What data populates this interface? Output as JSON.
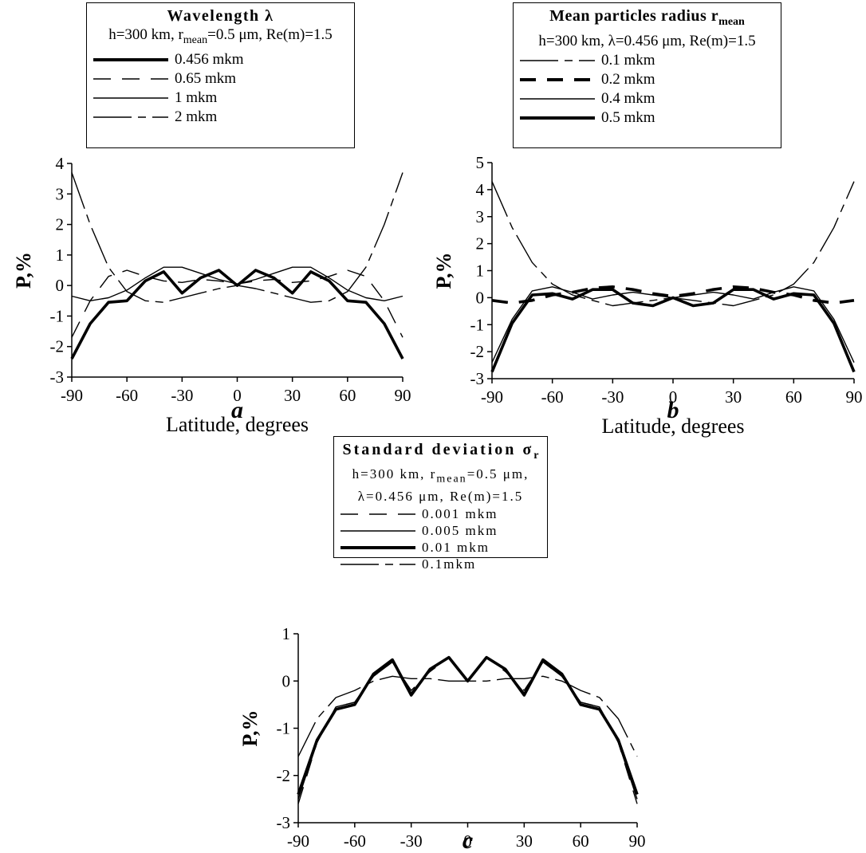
{
  "chart_data": [
    {
      "type": "line",
      "panel_label": "a",
      "legend": {
        "title": "Wavelength λ",
        "conditions": [
          "h=300 km, r",
          "mean",
          "=0.5 μm, Re(m)=1.5"
        ]
      },
      "xlabel": "Latitude, degrees",
      "ylabel": "P,%",
      "xlim": [
        -90,
        90
      ],
      "ylim": [
        -3,
        4
      ],
      "xticks": [
        -90,
        -60,
        -30,
        0,
        30,
        60,
        90
      ],
      "yticks": [
        -3,
        -2,
        -1,
        0,
        1,
        2,
        3,
        4
      ],
      "x": [
        -90,
        -80,
        -70,
        -60,
        -50,
        -40,
        -30,
        -20,
        -10,
        0,
        10,
        20,
        30,
        40,
        50,
        60,
        70,
        80,
        90
      ],
      "series": [
        {
          "name": "0.456 mkm",
          "style": "thick",
          "values": [
            -2.4,
            -1.25,
            -0.55,
            -0.5,
            0.15,
            0.45,
            -0.25,
            0.25,
            0.5,
            0.0,
            0.5,
            0.25,
            -0.25,
            0.45,
            0.15,
            -0.5,
            -0.55,
            -1.25,
            -2.4
          ]
        },
        {
          "name": "0.65 mkm",
          "style": "dashed",
          "values": [
            -1.7,
            -0.5,
            0.3,
            0.5,
            0.3,
            0.15,
            0.1,
            0.2,
            0.15,
            0.05,
            0.15,
            0.2,
            0.1,
            0.15,
            0.3,
            0.5,
            0.3,
            -0.5,
            -1.7
          ]
        },
        {
          "name": "1 mkm",
          "style": "thin",
          "values": [
            -0.35,
            -0.5,
            -0.4,
            -0.15,
            0.25,
            0.6,
            0.6,
            0.4,
            0.2,
            0.05,
            0.2,
            0.4,
            0.6,
            0.6,
            0.25,
            -0.15,
            -0.4,
            -0.5,
            -0.35
          ]
        },
        {
          "name": "2 mkm",
          "style": "dashdot",
          "values": [
            3.7,
            2.0,
            0.6,
            -0.2,
            -0.5,
            -0.55,
            -0.4,
            -0.25,
            -0.1,
            0.0,
            -0.1,
            -0.25,
            -0.4,
            -0.55,
            -0.5,
            -0.2,
            0.6,
            2.0,
            3.7
          ]
        }
      ]
    },
    {
      "type": "line",
      "panel_label": "b",
      "legend": {
        "title": "Mean particles radius r",
        "title_sub": "mean",
        "conditions": [
          "h=300 km, λ=0.456 μm, Re(m)=1.5"
        ]
      },
      "xlabel": "Latitude, degrees",
      "ylabel": "P,%",
      "xlim": [
        -90,
        90
      ],
      "ylim": [
        -3,
        5
      ],
      "xticks": [
        -90,
        -60,
        -30,
        0,
        30,
        60,
        90
      ],
      "yticks": [
        -3,
        -2,
        -1,
        0,
        1,
        2,
        3,
        4,
        5
      ],
      "x": [
        -90,
        -80,
        -70,
        -60,
        -50,
        -40,
        -30,
        -20,
        -10,
        0,
        10,
        20,
        30,
        40,
        50,
        60,
        70,
        80,
        90
      ],
      "series": [
        {
          "name": "0.1 mkm",
          "style": "dashdot",
          "values": [
            4.3,
            2.6,
            1.3,
            0.5,
            0.1,
            -0.1,
            -0.3,
            -0.2,
            -0.1,
            0.0,
            -0.1,
            -0.2,
            -0.3,
            -0.1,
            0.1,
            0.5,
            1.3,
            2.6,
            4.3
          ]
        },
        {
          "name": "0.2 mkm",
          "style": "thickdashed",
          "values": [
            -0.1,
            -0.2,
            -0.1,
            0.1,
            0.2,
            0.35,
            0.4,
            0.3,
            0.15,
            0.05,
            0.15,
            0.3,
            0.4,
            0.35,
            0.2,
            0.1,
            -0.1,
            -0.2,
            -0.1
          ]
        },
        {
          "name": "0.4 mkm",
          "style": "thin",
          "values": [
            -2.4,
            -0.8,
            0.25,
            0.4,
            0.2,
            -0.05,
            0.1,
            0.2,
            0.1,
            0.0,
            0.1,
            0.2,
            0.1,
            -0.05,
            0.2,
            0.4,
            0.25,
            -0.8,
            -2.4
          ]
        },
        {
          "name": "0.5 mkm",
          "style": "thick",
          "values": [
            -2.75,
            -0.95,
            0.1,
            0.15,
            -0.05,
            0.3,
            0.3,
            -0.2,
            -0.3,
            0.0,
            -0.3,
            -0.2,
            0.3,
            0.3,
            -0.05,
            0.15,
            0.1,
            -0.95,
            -2.75
          ]
        }
      ]
    },
    {
      "type": "line",
      "panel_label": "c",
      "legend": {
        "title": "Standard deviation σ",
        "title_sub": "r",
        "conditions": [
          "h=300 km, r",
          "mean",
          "=0.5 μm,",
          "λ=0.456 μm, Re(m)=1.5"
        ]
      },
      "xlabel": "Latitude, degrees",
      "ylabel": "P,%",
      "xlim": [
        -90,
        90
      ],
      "ylim": [
        -3,
        1
      ],
      "xticks": [
        -90,
        -60,
        -30,
        0,
        30,
        60,
        90
      ],
      "yticks": [
        -3,
        -2,
        -1,
        0,
        1
      ],
      "x": [
        -90,
        -80,
        -70,
        -60,
        -50,
        -40,
        -30,
        -20,
        -10,
        0,
        10,
        20,
        30,
        40,
        50,
        60,
        70,
        80,
        90
      ],
      "series": [
        {
          "name": "0.001 mkm",
          "style": "dashed",
          "values": [
            -2.6,
            -1.3,
            -0.55,
            -0.45,
            0.1,
            0.4,
            -0.2,
            0.2,
            0.5,
            0.0,
            0.5,
            0.2,
            -0.2,
            0.4,
            0.1,
            -0.45,
            -0.55,
            -1.3,
            -2.6
          ]
        },
        {
          "name": "0.005 mkm",
          "style": "thin",
          "values": [
            -2.5,
            -1.3,
            -0.55,
            -0.45,
            0.1,
            0.4,
            -0.25,
            0.25,
            0.5,
            0.0,
            0.5,
            0.25,
            -0.25,
            0.4,
            0.1,
            -0.45,
            -0.55,
            -1.3,
            -2.5
          ]
        },
        {
          "name": "0.01 mkm",
          "style": "thick",
          "values": [
            -2.4,
            -1.25,
            -0.6,
            -0.5,
            0.15,
            0.45,
            -0.3,
            0.25,
            0.5,
            0.0,
            0.5,
            0.25,
            -0.3,
            0.45,
            0.15,
            -0.5,
            -0.6,
            -1.25,
            -2.4
          ]
        },
        {
          "name": "0.1mkm",
          "style": "dashdot",
          "values": [
            -1.6,
            -0.8,
            -0.35,
            -0.2,
            0.0,
            0.1,
            0.05,
            0.05,
            0.0,
            0.0,
            0.0,
            0.05,
            0.05,
            0.1,
            0.0,
            -0.2,
            -0.35,
            -0.8,
            -1.6
          ]
        }
      ]
    }
  ]
}
